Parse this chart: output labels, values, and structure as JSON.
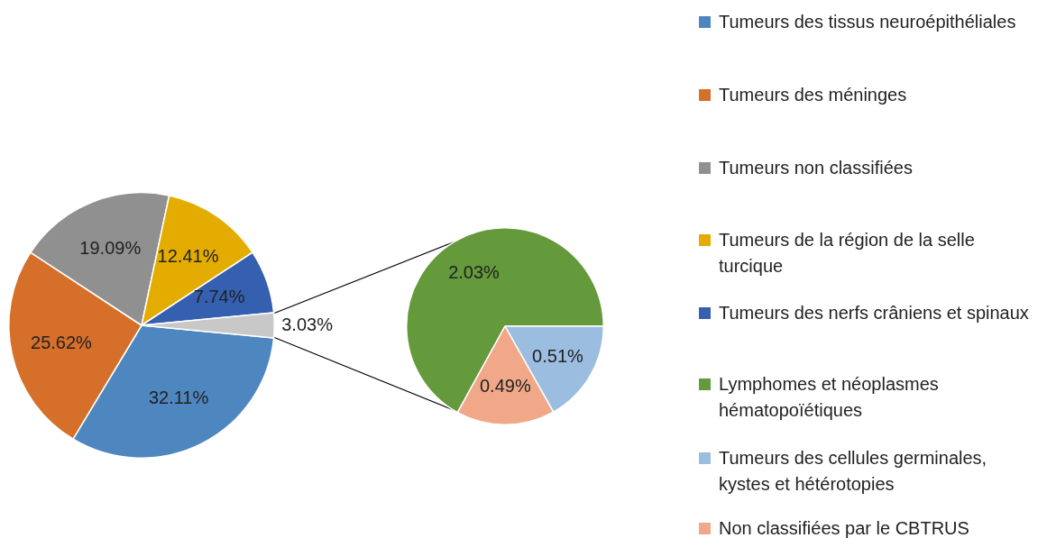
{
  "chart_data": [
    {
      "type": "pie",
      "categories": [
        "Tumeurs des tissus neuroépithéliales",
        "Tumeurs des méninges",
        "Tumeurs non classifiées",
        "Tumeurs de la région de la selle turcique",
        "Tumeurs des nerfs crâniens et spinaux",
        null
      ],
      "values": [
        32.11,
        25.62,
        19.09,
        12.41,
        7.74,
        3.03
      ],
      "value_labels": [
        "32.11%",
        "25.62%",
        "19.09%",
        "12.41%",
        "7.74%",
        "3.03%"
      ],
      "colors": [
        "#4e86c0",
        "#d66f2a",
        "#909090",
        "#e5ac00",
        "#3560b0",
        "#c8c8c8"
      ],
      "legend": "right"
    },
    {
      "type": "pie",
      "categories": [
        "Lymphomes et néoplasmes hématopoïétiques",
        "Tumeurs des cellules germinales, kystes et hétérotopies",
        "Non classifiées par le CBTRUS"
      ],
      "values": [
        2.03,
        0.51,
        0.49
      ],
      "value_labels": [
        "2.03%",
        "0.51%",
        "0.49%"
      ],
      "colors": [
        "#64993c",
        "#9bbde0",
        "#f0a888"
      ],
      "legend": "right"
    }
  ]
}
